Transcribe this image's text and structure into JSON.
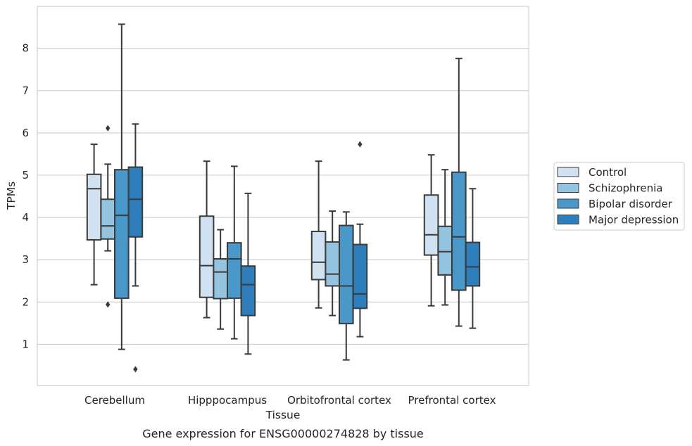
{
  "chart_data": {
    "type": "boxplot",
    "title": "",
    "caption": "Gene expression for ENSG00000274828 by tissue",
    "xlabel": "Tissue",
    "ylabel": "TPMs",
    "ylim": [
      0,
      9
    ],
    "yticks": [
      1,
      2,
      3,
      4,
      5,
      6,
      7,
      8
    ],
    "grid": "horizontal",
    "legend_position": "right",
    "categories": [
      "Cerebellum",
      "Hipppocampus",
      "Orbitofrontal cortex",
      "Prefrontal cortex"
    ],
    "series": [
      {
        "name": "Control",
        "color": "#d0e1f2",
        "boxes": [
          {
            "whislo": 2.41,
            "q1": 3.47,
            "med": 4.68,
            "q3": 5.02,
            "whishi": 5.73,
            "fliers": []
          },
          {
            "whislo": 1.63,
            "q1": 2.11,
            "med": 2.86,
            "q3": 4.03,
            "whishi": 5.33,
            "fliers": []
          },
          {
            "whislo": 1.86,
            "q1": 2.53,
            "med": 2.94,
            "q3": 3.67,
            "whishi": 5.33,
            "fliers": []
          },
          {
            "whislo": 1.91,
            "q1": 3.11,
            "med": 3.59,
            "q3": 4.53,
            "whishi": 5.48,
            "fliers": []
          }
        ]
      },
      {
        "name": "Schizophrenia",
        "color": "#94c4df",
        "boxes": [
          {
            "whislo": 3.21,
            "q1": 3.49,
            "med": 3.8,
            "q3": 4.43,
            "whishi": 5.26,
            "fliers": [
              6.11,
              1.94
            ]
          },
          {
            "whislo": 1.36,
            "q1": 2.08,
            "med": 2.71,
            "q3": 3.02,
            "whishi": 3.71,
            "fliers": []
          },
          {
            "whislo": 1.68,
            "q1": 2.38,
            "med": 2.66,
            "q3": 3.42,
            "whishi": 4.15,
            "fliers": []
          },
          {
            "whislo": 1.93,
            "q1": 2.64,
            "med": 3.19,
            "q3": 3.79,
            "whishi": 5.13,
            "fliers": []
          }
        ]
      },
      {
        "name": "Bipolar disorder",
        "color": "#4a98c9",
        "boxes": [
          {
            "whislo": 0.88,
            "q1": 2.09,
            "med": 4.05,
            "q3": 5.13,
            "whishi": 8.57,
            "fliers": []
          },
          {
            "whislo": 1.13,
            "q1": 2.09,
            "med": 3.02,
            "q3": 3.4,
            "whishi": 5.21,
            "fliers": []
          },
          {
            "whislo": 0.63,
            "q1": 1.49,
            "med": 2.38,
            "q3": 3.81,
            "whishi": 4.13,
            "fliers": []
          },
          {
            "whislo": 1.43,
            "q1": 2.28,
            "med": 3.54,
            "q3": 5.07,
            "whishi": 7.76,
            "fliers": []
          }
        ]
      },
      {
        "name": "Major depression",
        "color": "#2e7ebc",
        "boxes": [
          {
            "whislo": 2.38,
            "q1": 3.54,
            "med": 4.43,
            "q3": 5.19,
            "whishi": 6.21,
            "fliers": [
              0.41
            ]
          },
          {
            "whislo": 0.77,
            "q1": 1.68,
            "med": 2.41,
            "q3": 2.85,
            "whishi": 4.57,
            "fliers": []
          },
          {
            "whislo": 1.18,
            "q1": 1.85,
            "med": 2.19,
            "q3": 3.36,
            "whishi": 3.84,
            "fliers": [
              5.73
            ]
          },
          {
            "whislo": 1.38,
            "q1": 2.38,
            "med": 2.83,
            "q3": 3.41,
            "whishi": 4.68,
            "fliers": []
          }
        ]
      }
    ]
  }
}
